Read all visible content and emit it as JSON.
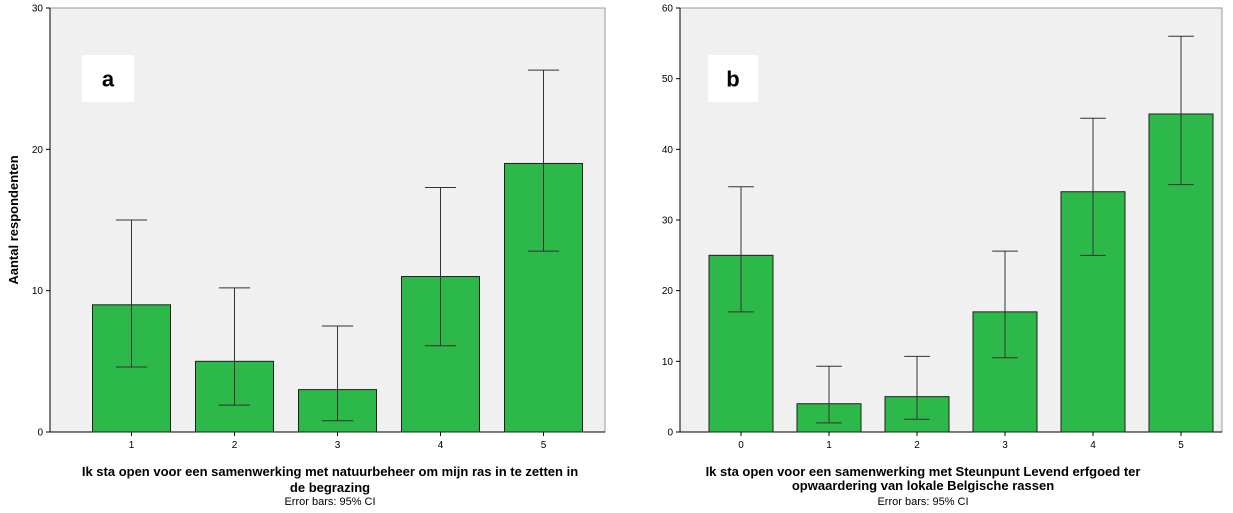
{
  "chart_data": [
    {
      "type": "bar",
      "panel_label": "a",
      "categories": [
        "1",
        "2",
        "3",
        "4",
        "5"
      ],
      "values": [
        9,
        5,
        3,
        11,
        19
      ],
      "ci_low": [
        4.6,
        1.9,
        0.8,
        6.1,
        12.8
      ],
      "ci_high": [
        15.0,
        10.2,
        7.5,
        17.3,
        25.6
      ],
      "ylabel": "Aantal respondenten",
      "xlabel_lines": [
        "Ik sta open voor een samenwerking met natuurbeheer om mijn ras in te zetten in",
        "de begrazing"
      ],
      "note": "Error bars: 95% CI",
      "ylim": [
        0,
        30
      ],
      "yticks": [
        0,
        10,
        20,
        30
      ],
      "bar_color": "#2db84a",
      "background": "#f0f0f0"
    },
    {
      "type": "bar",
      "panel_label": "b",
      "categories": [
        "0",
        "1",
        "2",
        "3",
        "4",
        "5"
      ],
      "values": [
        25,
        4,
        5,
        17,
        34,
        45
      ],
      "ci_low": [
        17.0,
        1.3,
        1.8,
        10.5,
        25.0,
        35.0
      ],
      "ci_high": [
        34.7,
        9.3,
        10.7,
        25.6,
        44.4,
        56.0
      ],
      "ylabel": "",
      "xlabel_lines": [
        "Ik sta open voor een samenwerking met Steunpunt Levend erfgoed ter",
        "opwaardering van lokale Belgische rassen"
      ],
      "note": "Error bars: 95% CI",
      "ylim": [
        0,
        60
      ],
      "yticks": [
        0,
        10,
        20,
        30,
        40,
        50,
        60
      ],
      "bar_color": "#2db84a",
      "background": "#f0f0f0"
    }
  ]
}
